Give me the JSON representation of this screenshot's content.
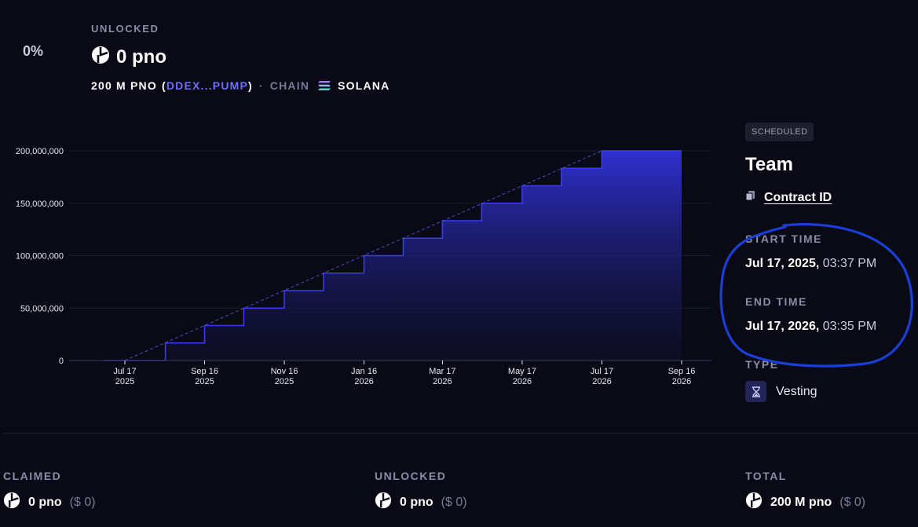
{
  "summary": {
    "percent": "0%",
    "unlocked_label": "UNLOCKED",
    "unlocked_amount": "0 pno",
    "supply": "200 M PNO",
    "address": "DDEX...PUMP",
    "chain_label": "CHAIN",
    "chain_value": "SOLANA"
  },
  "stream": {
    "status_badge": "SCHEDULED",
    "name": "Team",
    "contract_link": "Contract ID",
    "start_label": "START TIME",
    "start_date": "Jul 17, 2025,",
    "start_time": "03:37 PM",
    "end_label": "END TIME",
    "end_date": "Jul 17, 2026,",
    "end_time": "03:35 PM",
    "type_label": "TYPE",
    "type_value": "Vesting"
  },
  "totals": {
    "claimed_label": "CLAIMED",
    "claimed_amount": "0 pno",
    "claimed_usd": "($ 0)",
    "unlocked_label": "UNLOCKED",
    "unlocked_amount": "0 pno",
    "unlocked_usd": "($ 0)",
    "total_label": "TOTAL",
    "total_amount": "200 M pno",
    "total_usd": "($ 0)"
  },
  "colors": {
    "accent": "#3a3ae0",
    "link": "#6f6ff6",
    "background": "#0a0a16"
  },
  "icons": {
    "token": "pno-token-icon",
    "chain": "solana-icon",
    "copy": "copy-icon",
    "type": "hourglass-icon"
  },
  "chart_data": {
    "type": "area",
    "title": "",
    "xlabel": "",
    "ylabel": "",
    "ylim": [
      0,
      200000000
    ],
    "yticks": [
      0,
      50000000,
      100000000,
      150000000,
      200000000
    ],
    "ytick_labels": [
      "0",
      "50,000,000",
      "100,000,000",
      "150,000,000",
      "200,000,000"
    ],
    "xtick_labels": [
      [
        "Jul 17",
        "2025"
      ],
      [
        "Sep 16",
        "2025"
      ],
      [
        "Nov 16",
        "2025"
      ],
      [
        "Jan 16",
        "2026"
      ],
      [
        "Mar 17",
        "2026"
      ],
      [
        "May 17",
        "2026"
      ],
      [
        "Jul 17",
        "2026"
      ],
      [
        "Sep 16",
        "2026"
      ]
    ],
    "grid": true,
    "series": [
      {
        "style": "step",
        "x": [
          "2025-07-01",
          "2025-07-17",
          "2025-08-17",
          "2025-09-16",
          "2025-10-16",
          "2025-11-16",
          "2025-12-16",
          "2026-01-16",
          "2026-02-15",
          "2026-03-17",
          "2026-04-16",
          "2026-05-17",
          "2026-06-16",
          "2026-07-17",
          "2026-09-16"
        ],
        "values": [
          0,
          0,
          16666667,
          33333333,
          50000000,
          66666667,
          83333333,
          100000000,
          116666667,
          133333333,
          150000000,
          166666667,
          183333333,
          200000000,
          200000000
        ]
      },
      {
        "style": "dashed-linear",
        "x": [
          "2025-07-17",
          "2026-07-17"
        ],
        "values": [
          0,
          200000000
        ]
      }
    ]
  }
}
